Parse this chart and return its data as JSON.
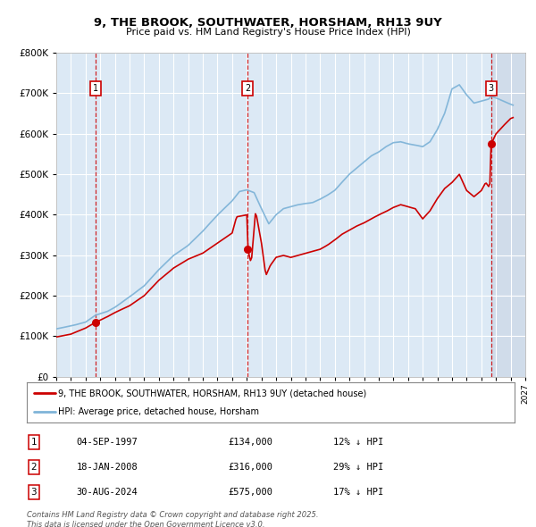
{
  "title": "9, THE BROOK, SOUTHWATER, HORSHAM, RH13 9UY",
  "subtitle": "Price paid vs. HM Land Registry's House Price Index (HPI)",
  "red_label": "9, THE BROOK, SOUTHWATER, HORSHAM, RH13 9UY (detached house)",
  "blue_label": "HPI: Average price, detached house, Horsham",
  "footer": "Contains HM Land Registry data © Crown copyright and database right 2025.\nThis data is licensed under the Open Government Licence v3.0.",
  "transactions": [
    {
      "num": 1,
      "date": "04-SEP-1997",
      "price": 134000,
      "hpi_diff": "12% ↓ HPI",
      "date_decimal": 1997.67
    },
    {
      "num": 2,
      "date": "18-JAN-2008",
      "price": 316000,
      "hpi_diff": "29% ↓ HPI",
      "date_decimal": 2008.05
    },
    {
      "num": 3,
      "date": "30-AUG-2024",
      "price": 575000,
      "hpi_diff": "17% ↓ HPI",
      "date_decimal": 2024.67
    }
  ],
  "ylim": [
    0,
    800000
  ],
  "yticks": [
    0,
    100000,
    200000,
    300000,
    400000,
    500000,
    600000,
    700000,
    800000
  ],
  "xlim_start": 1995.0,
  "xlim_end": 2027.0,
  "background_color": "#ffffff",
  "plot_bg_color": "#dce9f5",
  "grid_color": "#ffffff",
  "red_color": "#cc0000",
  "blue_color": "#7fb4d8",
  "dashed_color": "#cc0000",
  "shaded_after_color": "#c8d4e4"
}
